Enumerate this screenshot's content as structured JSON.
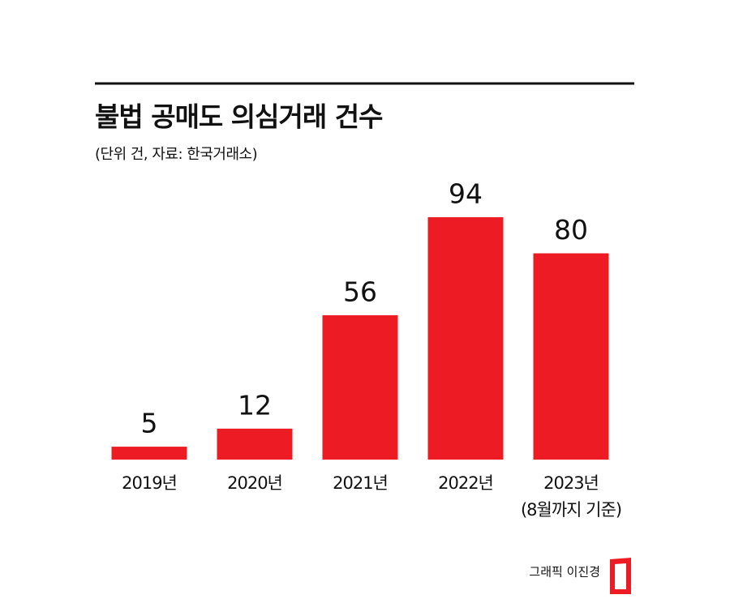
{
  "chart_data": {
    "type": "bar",
    "title": "불법 공매도 의심거래 건수",
    "subtitle": "(단위 건, 자료: 한국거래소)",
    "categories": [
      "2019년",
      "2020년",
      "2021년",
      "2022년",
      "2023년\n(8월까지 기준)"
    ],
    "values": [
      5,
      12,
      56,
      94,
      80
    ],
    "color": "#ed1c24",
    "credit": "그래픽 이진경"
  }
}
